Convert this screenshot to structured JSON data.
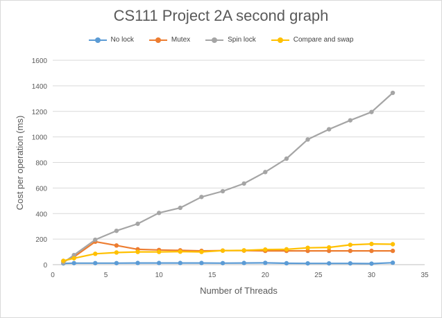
{
  "chart_data": {
    "type": "line",
    "title": "CS111 Project 2A second graph",
    "xlabel": "Number of Threads",
    "ylabel": "Cost per operation (ms)",
    "xlim": [
      0,
      35
    ],
    "ylim": [
      0,
      1600
    ],
    "xticks": [
      0,
      5,
      10,
      15,
      20,
      25,
      30,
      35
    ],
    "yticks": [
      0,
      200,
      400,
      600,
      800,
      1000,
      1200,
      1400,
      1600
    ],
    "grid": true,
    "legend_position": "top",
    "series": [
      {
        "name": "No lock",
        "color": "#5b9bd5",
        "x": [
          1,
          2,
          4,
          6,
          8,
          10,
          12,
          14,
          16,
          18,
          20,
          22,
          24,
          26,
          28,
          30,
          32
        ],
        "y": [
          10,
          12,
          12,
          12,
          13,
          13,
          13,
          13,
          12,
          13,
          14,
          11,
          10,
          10,
          10,
          8,
          15
        ]
      },
      {
        "name": "Mutex",
        "color": "#ed7d31",
        "x": [
          1,
          2,
          4,
          6,
          8,
          10,
          12,
          14,
          16,
          18,
          20,
          22,
          24,
          26,
          28,
          30,
          32
        ],
        "y": [
          25,
          60,
          180,
          150,
          120,
          115,
          112,
          108,
          110,
          110,
          108,
          108,
          108,
          108,
          108,
          108,
          108
        ]
      },
      {
        "name": "Spin lock",
        "color": "#a5a5a5",
        "x": [
          1,
          2,
          4,
          6,
          8,
          10,
          12,
          14,
          16,
          18,
          20,
          22,
          24,
          26,
          28,
          30,
          32
        ],
        "y": [
          15,
          75,
          195,
          265,
          320,
          405,
          445,
          530,
          575,
          635,
          725,
          830,
          980,
          1060,
          1130,
          1195,
          1345
        ]
      },
      {
        "name": "Compare and swap",
        "color": "#ffc000",
        "x": [
          1,
          2,
          4,
          6,
          8,
          10,
          12,
          14,
          16,
          18,
          20,
          22,
          24,
          26,
          28,
          30,
          32
        ],
        "y": [
          30,
          50,
          85,
          95,
          100,
          100,
          102,
          100,
          110,
          112,
          118,
          120,
          132,
          135,
          155,
          162,
          160
        ]
      }
    ]
  }
}
